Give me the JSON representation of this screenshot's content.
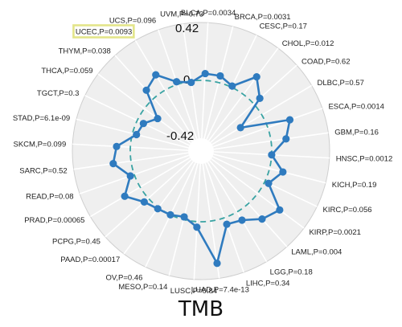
{
  "chart_data": {
    "type": "radar",
    "title": "TMB",
    "radial_ticks": [
      "0.42",
      "0",
      "-0.42"
    ],
    "rlim": [
      -0.42,
      0.42
    ],
    "line_color": "#2f7bbf",
    "ring_color": "#3aa3a3",
    "highlight_color": "#e3e58a",
    "highlighted": "UCEC,P=0.0093",
    "categories": [
      "BLCA,P=0.0034",
      "BRCA,P=0.0031",
      "CESC,P=0.17",
      "CHOL,P=0.012",
      "COAD,P=0.62",
      "DLBC,P=0.57",
      "ESCA,P=0.0014",
      "GBM,P=0.16",
      "HNSC,P=0.0012",
      "KICH,P=0.19",
      "KIRC,P=0.056",
      "KIRP,P=0.0021",
      "LAML,P=0.004",
      "LGG,P=0.18",
      "LIHC,P=0.34",
      "LUAD,P=7.4e-13",
      "LUSC,P=0.84",
      "MESO,P=0.14",
      "OV,P=0.46",
      "PAAD,P=0.00017",
      "PCPG,P=0.45",
      "PRAD,P=0.00065",
      "READ,P=0.08",
      "SARC,P=0.52",
      "SKCM,P=0.099",
      "STAD,P=6.1e-09",
      "TGCT,P=0.3",
      "THCA,P=0.059",
      "THYM,P=0.038",
      "UCEC,P=0.0093",
      "UCS,P=0.096",
      "UVM,P=0.73"
    ],
    "values": [
      0.05,
      0.05,
      0.01,
      0.16,
      0.06,
      -0.18,
      0.17,
      0.11,
      0.0,
      0.1,
      0.03,
      0.2,
      0.15,
      0.07,
      0.05,
      0.31,
      0.04,
      -0.02,
      0.0,
      0.01,
      0.04,
      0.13,
      0.03,
      0.13,
      0.1,
      -0.03,
      -0.05,
      -0.12,
      0.08,
      0.13,
      0.02,
      -0.01
    ]
  }
}
